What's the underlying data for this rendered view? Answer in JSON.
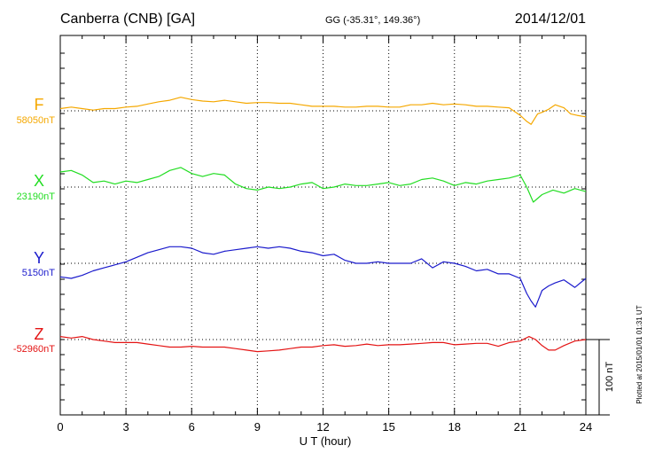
{
  "header": {
    "station": "Canberra (CNB)  [GA]",
    "coordinates": "GG (-35.31°, 149.36°)",
    "date": "2014/12/01"
  },
  "footer_note": "Plotted at 2015/01/01 01:31  UT",
  "chart_data": {
    "type": "line",
    "xlabel": "U T (hour)",
    "xlim": [
      0,
      24
    ],
    "xticks": [
      "0",
      "3",
      "6",
      "9",
      "12",
      "15",
      "18",
      "21",
      "24"
    ],
    "scale_bar": {
      "label": "100 nT",
      "value_nT": 100
    },
    "grid": true,
    "series": [
      {
        "name": "F",
        "baseline_label": "58050nT",
        "baseline_nT": 58050,
        "color": "#f5a800",
        "points": [
          [
            0,
            3
          ],
          [
            0.5,
            5
          ],
          [
            1,
            3
          ],
          [
            1.5,
            1
          ],
          [
            2,
            3
          ],
          [
            2.5,
            3
          ],
          [
            3,
            5
          ],
          [
            3.5,
            6
          ],
          [
            4,
            9
          ],
          [
            4.5,
            12
          ],
          [
            5,
            14
          ],
          [
            5.5,
            18
          ],
          [
            6,
            15
          ],
          [
            6.5,
            13
          ],
          [
            7,
            12
          ],
          [
            7.5,
            14
          ],
          [
            8,
            12
          ],
          [
            8.5,
            10
          ],
          [
            9,
            11
          ],
          [
            9.5,
            11
          ],
          [
            10,
            10
          ],
          [
            10.5,
            10
          ],
          [
            11,
            8
          ],
          [
            11.5,
            6
          ],
          [
            12,
            6
          ],
          [
            12.5,
            6
          ],
          [
            13,
            5
          ],
          [
            13.5,
            5
          ],
          [
            14,
            6
          ],
          [
            14.5,
            6
          ],
          [
            15,
            5
          ],
          [
            15.5,
            5
          ],
          [
            16,
            8
          ],
          [
            16.5,
            8
          ],
          [
            17,
            10
          ],
          [
            17.5,
            8
          ],
          [
            18,
            9
          ],
          [
            18.5,
            8
          ],
          [
            19,
            6
          ],
          [
            19.5,
            6
          ],
          [
            20,
            5
          ],
          [
            20.5,
            4
          ],
          [
            21,
            -6
          ],
          [
            21.3,
            -14
          ],
          [
            21.5,
            -18
          ],
          [
            21.8,
            -4
          ],
          [
            22,
            -2
          ],
          [
            22.3,
            2
          ],
          [
            22.6,
            8
          ],
          [
            23,
            4
          ],
          [
            23.3,
            -4
          ],
          [
            23.6,
            -6
          ],
          [
            24,
            -8
          ]
        ]
      },
      {
        "name": "X",
        "baseline_label": "23190nT",
        "baseline_nT": 23190,
        "color": "#22dd22",
        "points": [
          [
            0,
            20
          ],
          [
            0.5,
            22
          ],
          [
            1,
            16
          ],
          [
            1.5,
            6
          ],
          [
            2,
            8
          ],
          [
            2.5,
            4
          ],
          [
            3,
            8
          ],
          [
            3.5,
            6
          ],
          [
            4,
            10
          ],
          [
            4.5,
            14
          ],
          [
            5,
            22
          ],
          [
            5.5,
            26
          ],
          [
            6,
            18
          ],
          [
            6.5,
            14
          ],
          [
            7,
            18
          ],
          [
            7.5,
            16
          ],
          [
            8,
            4
          ],
          [
            8.5,
            -2
          ],
          [
            9,
            -4
          ],
          [
            9.5,
            0
          ],
          [
            10,
            -2
          ],
          [
            10.5,
            0
          ],
          [
            11,
            4
          ],
          [
            11.5,
            6
          ],
          [
            12,
            -2
          ],
          [
            12.5,
            0
          ],
          [
            13,
            4
          ],
          [
            13.5,
            2
          ],
          [
            14,
            2
          ],
          [
            14.5,
            4
          ],
          [
            15,
            6
          ],
          [
            15.5,
            2
          ],
          [
            16,
            4
          ],
          [
            16.5,
            10
          ],
          [
            17,
            12
          ],
          [
            17.5,
            8
          ],
          [
            18,
            2
          ],
          [
            18.5,
            6
          ],
          [
            19,
            4
          ],
          [
            19.5,
            8
          ],
          [
            20,
            10
          ],
          [
            20.5,
            12
          ],
          [
            21,
            16
          ],
          [
            21.3,
            0
          ],
          [
            21.6,
            -20
          ],
          [
            22,
            -10
          ],
          [
            22.5,
            -4
          ],
          [
            23,
            -8
          ],
          [
            23.5,
            -2
          ],
          [
            24,
            -6
          ]
        ]
      },
      {
        "name": "Y",
        "baseline_label": "5150nT",
        "baseline_nT": 5150,
        "color": "#1a1acc",
        "points": [
          [
            0,
            -18
          ],
          [
            0.5,
            -20
          ],
          [
            1,
            -16
          ],
          [
            1.5,
            -10
          ],
          [
            2,
            -6
          ],
          [
            2.5,
            -2
          ],
          [
            3,
            2
          ],
          [
            3.5,
            8
          ],
          [
            4,
            14
          ],
          [
            4.5,
            18
          ],
          [
            5,
            22
          ],
          [
            5.5,
            22
          ],
          [
            6,
            20
          ],
          [
            6.5,
            14
          ],
          [
            7,
            12
          ],
          [
            7.5,
            16
          ],
          [
            8,
            18
          ],
          [
            8.5,
            20
          ],
          [
            9,
            22
          ],
          [
            9.5,
            20
          ],
          [
            10,
            22
          ],
          [
            10.5,
            20
          ],
          [
            11,
            16
          ],
          [
            11.5,
            14
          ],
          [
            12,
            10
          ],
          [
            12.5,
            12
          ],
          [
            13,
            4
          ],
          [
            13.5,
            0
          ],
          [
            14,
            0
          ],
          [
            14.5,
            2
          ],
          [
            15,
            0
          ],
          [
            15.5,
            0
          ],
          [
            16,
            0
          ],
          [
            16.5,
            6
          ],
          [
            17,
            -6
          ],
          [
            17.5,
            2
          ],
          [
            18,
            0
          ],
          [
            18.5,
            -4
          ],
          [
            19,
            -10
          ],
          [
            19.5,
            -8
          ],
          [
            20,
            -14
          ],
          [
            20.5,
            -14
          ],
          [
            21,
            -20
          ],
          [
            21.3,
            -40
          ],
          [
            21.5,
            -50
          ],
          [
            21.7,
            -58
          ],
          [
            22,
            -36
          ],
          [
            22.3,
            -30
          ],
          [
            22.6,
            -26
          ],
          [
            23,
            -22
          ],
          [
            23.5,
            -32
          ],
          [
            24,
            -20
          ]
        ]
      },
      {
        "name": "Z",
        "baseline_label": "-52960nT",
        "baseline_nT": -52960,
        "color": "#e41414",
        "points": [
          [
            0,
            4
          ],
          [
            0.5,
            2
          ],
          [
            1,
            4
          ],
          [
            1.5,
            0
          ],
          [
            2,
            -2
          ],
          [
            2.5,
            -4
          ],
          [
            3,
            -4
          ],
          [
            3.5,
            -4
          ],
          [
            4,
            -6
          ],
          [
            4.5,
            -8
          ],
          [
            5,
            -10
          ],
          [
            5.5,
            -10
          ],
          [
            6,
            -9
          ],
          [
            6.5,
            -10
          ],
          [
            7,
            -10
          ],
          [
            7.5,
            -10
          ],
          [
            8,
            -12
          ],
          [
            8.5,
            -14
          ],
          [
            9,
            -16
          ],
          [
            9.5,
            -15
          ],
          [
            10,
            -14
          ],
          [
            10.5,
            -12
          ],
          [
            11,
            -10
          ],
          [
            11.5,
            -10
          ],
          [
            12,
            -8
          ],
          [
            12.5,
            -7
          ],
          [
            13,
            -9
          ],
          [
            13.5,
            -8
          ],
          [
            14,
            -6
          ],
          [
            14.5,
            -8
          ],
          [
            15,
            -7
          ],
          [
            15.5,
            -7
          ],
          [
            16,
            -6
          ],
          [
            16.5,
            -5
          ],
          [
            17,
            -4
          ],
          [
            17.5,
            -4
          ],
          [
            18,
            -7
          ],
          [
            18.5,
            -6
          ],
          [
            19,
            -5
          ],
          [
            19.5,
            -5
          ],
          [
            20,
            -9
          ],
          [
            20.5,
            -4
          ],
          [
            21,
            -2
          ],
          [
            21.4,
            4
          ],
          [
            21.7,
            0
          ],
          [
            22,
            -8
          ],
          [
            22.3,
            -14
          ],
          [
            22.6,
            -14
          ],
          [
            23,
            -8
          ],
          [
            23.5,
            -2
          ],
          [
            24,
            0
          ]
        ]
      }
    ]
  }
}
